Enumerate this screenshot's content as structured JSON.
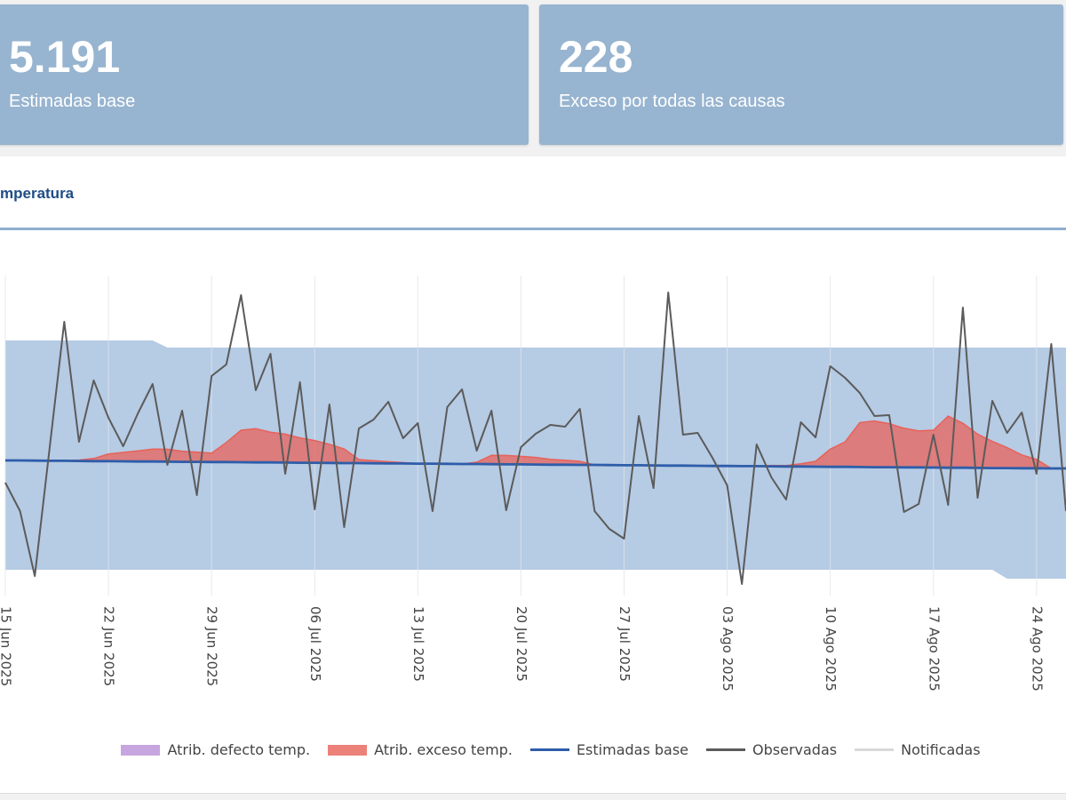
{
  "cards": [
    {
      "value": "5.191",
      "label": "Estimadas base"
    },
    {
      "value": "228",
      "label": "Exceso por todas las causas"
    }
  ],
  "panel": {
    "title": "mperatura"
  },
  "chart_data": {
    "type": "line",
    "x": [
      "2025-06-15",
      "2025-06-16",
      "2025-06-17",
      "2025-06-18",
      "2025-06-19",
      "2025-06-20",
      "2025-06-21",
      "2025-06-22",
      "2025-06-23",
      "2025-06-24",
      "2025-06-25",
      "2025-06-26",
      "2025-06-27",
      "2025-06-28",
      "2025-06-29",
      "2025-06-30",
      "2025-07-01",
      "2025-07-02",
      "2025-07-03",
      "2025-07-04",
      "2025-07-05",
      "2025-07-06",
      "2025-07-07",
      "2025-07-08",
      "2025-07-09",
      "2025-07-10",
      "2025-07-11",
      "2025-07-12",
      "2025-07-13",
      "2025-07-14",
      "2025-07-15",
      "2025-07-16",
      "2025-07-17",
      "2025-07-18",
      "2025-07-19",
      "2025-07-20",
      "2025-07-21",
      "2025-07-22",
      "2025-07-23",
      "2025-07-24",
      "2025-07-25",
      "2025-07-26",
      "2025-07-27",
      "2025-07-28",
      "2025-07-29",
      "2025-07-30",
      "2025-07-31",
      "2025-08-01",
      "2025-08-02",
      "2025-08-03",
      "2025-08-04",
      "2025-08-05",
      "2025-08-06",
      "2025-08-07",
      "2025-08-08",
      "2025-08-09",
      "2025-08-10",
      "2025-08-11",
      "2025-08-12",
      "2025-08-13",
      "2025-08-14",
      "2025-08-15",
      "2025-08-16",
      "2025-08-17",
      "2025-08-18",
      "2025-08-19",
      "2025-08-20",
      "2025-08-21",
      "2025-08-22",
      "2025-08-23",
      "2025-08-24",
      "2025-08-25",
      "2025-08-26"
    ],
    "xlim": [
      "2025-06-15",
      "2025-08-26"
    ],
    "xticks": [
      {
        "value": "2025-06-15",
        "label": "15 Jun 2025"
      },
      {
        "value": "2025-06-22",
        "label": "22 Jun 2025"
      },
      {
        "value": "2025-06-29",
        "label": "29 Jun 2025"
      },
      {
        "value": "2025-07-06",
        "label": "06 Jul 2025"
      },
      {
        "value": "2025-07-13",
        "label": "13 Jul 2025"
      },
      {
        "value": "2025-07-20",
        "label": "20 Jul 2025"
      },
      {
        "value": "2025-07-27",
        "label": "27 Jul 2025"
      },
      {
        "value": "2025-08-03",
        "label": "03 Ago 2025"
      },
      {
        "value": "2025-08-10",
        "label": "10 Ago 2025"
      },
      {
        "value": "2025-08-17",
        "label": "17 Ago 2025"
      },
      {
        "value": "2025-08-24",
        "label": "24 Ago 2025"
      }
    ],
    "ylim": [
      0,
      180
    ],
    "grid": true,
    "legend": "bottom",
    "interval": {
      "color": "#b6cbe4",
      "upper": [
        143.5,
        143.5,
        143.5,
        143.5,
        143.5,
        143.5,
        143.5,
        143.5,
        143.5,
        143.5,
        143.5,
        139.5,
        139.5,
        139.5,
        139.5,
        139.5,
        139.5,
        139.5,
        139.5,
        139.5,
        139.5,
        139.5,
        139.5,
        139.5,
        139.5,
        139.5,
        139.5,
        139.5,
        139.5,
        139.5,
        139.5,
        139.5,
        139.5,
        139.5,
        139.5,
        139.5,
        139.5,
        139.5,
        139.5,
        139.5,
        139.5,
        139.5,
        139.5,
        139.5,
        139.5,
        139.5,
        139.5,
        139.5,
        139.5,
        139.5,
        139.5,
        139.5,
        139.5,
        139.5,
        139.5,
        139.5,
        139.5,
        139.5,
        139.5,
        139.5,
        139.5,
        139.5,
        139.5,
        139.5,
        139.5,
        139.5,
        139.5,
        139.5,
        139.5,
        139.5,
        139.5,
        139.5,
        139.5
      ],
      "lower": [
        14.5,
        14.5,
        14.5,
        14.5,
        14.5,
        14.5,
        14.5,
        14.5,
        14.5,
        14.5,
        14.5,
        14.5,
        14.5,
        14.5,
        14.5,
        14.5,
        14.5,
        14.5,
        14.5,
        14.5,
        14.5,
        14.5,
        14.5,
        14.5,
        14.5,
        14.5,
        14.5,
        14.5,
        14.5,
        14.5,
        14.5,
        14.5,
        14.5,
        14.5,
        14.5,
        14.5,
        14.5,
        14.5,
        14.5,
        14.5,
        14.5,
        14.5,
        14.5,
        14.5,
        14.5,
        14.5,
        14.5,
        14.5,
        14.5,
        14.5,
        14.5,
        14.5,
        14.5,
        14.5,
        14.5,
        14.5,
        14.5,
        14.5,
        14.5,
        14.5,
        14.5,
        14.5,
        14.5,
        14.5,
        14.5,
        14.5,
        14.5,
        14.5,
        9.5,
        9.5,
        9.5,
        9.5,
        9.5
      ]
    },
    "series": [
      {
        "name": "Atrib. defecto temp.",
        "color": "#b98fd9",
        "kind": "area"
      },
      {
        "name": "Atrib. exceso temp.",
        "color": "#e8625a",
        "kind": "area",
        "stack_on": 2,
        "values": [
          0,
          0,
          0,
          0,
          0,
          0.5,
          1.5,
          4,
          5,
          6,
          7,
          7,
          6,
          5.5,
          5,
          11,
          18,
          19,
          17,
          16,
          14,
          12.5,
          10.5,
          8,
          2,
          1.5,
          1,
          0.5,
          0,
          0,
          0,
          0,
          1,
          5,
          5,
          4.5,
          4,
          3,
          2.5,
          2,
          0,
          0,
          0,
          0,
          0,
          0,
          0,
          0,
          0,
          0,
          0,
          0,
          0.5,
          0.5,
          1.5,
          3,
          10,
          14,
          25,
          26,
          24.5,
          22,
          20.5,
          21,
          29,
          25,
          19,
          15,
          11.5,
          7.5,
          5,
          0,
          0
        ]
      },
      {
        "name": "Estimadas base",
        "color": "#2e5daa",
        "kind": "line",
        "values": [
          76,
          76,
          75.9,
          75.8,
          75.8,
          75.7,
          75.6,
          75.6,
          75.5,
          75.4,
          75.4,
          75.3,
          75.2,
          75.2,
          75.1,
          75.1,
          75,
          74.9,
          74.9,
          74.8,
          74.7,
          74.7,
          74.6,
          74.5,
          74.5,
          74.4,
          74.3,
          74.3,
          74.2,
          74.2,
          74.1,
          74,
          74,
          73.9,
          73.8,
          73.8,
          73.7,
          73.6,
          73.6,
          73.5,
          73.5,
          73.4,
          73.3,
          73.3,
          73.2,
          73.1,
          73.1,
          73,
          72.9,
          72.9,
          72.8,
          72.8,
          72.7,
          72.6,
          72.6,
          72.5,
          72.4,
          72.4,
          72.3,
          72.2,
          72.2,
          72.1,
          72.1,
          72,
          71.9,
          71.9,
          71.8,
          71.7,
          71.7,
          71.6,
          71.6,
          71.5,
          71.5
        ]
      },
      {
        "name": "Observadas",
        "color": "#5b5b5b",
        "kind": "line",
        "values": [
          63.5,
          47.5,
          11,
          82.5,
          154,
          86.5,
          121,
          100,
          84,
          102.5,
          119,
          73.5,
          104,
          56.5,
          123.5,
          130,
          169,
          115.5,
          136,
          68.5,
          120,
          48.5,
          107.5,
          38.5,
          94,
          99,
          109,
          88.5,
          97,
          47.5,
          106,
          116,
          81.5,
          104,
          48,
          83.5,
          91,
          96,
          95,
          105,
          47.5,
          37.5,
          32,
          101,
          60.5,
          170.5,
          90.5,
          91.5,
          77.5,
          62,
          6.5,
          85,
          66.5,
          54,
          97.5,
          89,
          129,
          122.5,
          114,
          101,
          101.5,
          47,
          51.5,
          90.5,
          51,
          162,
          55,
          109.5,
          91.5,
          103,
          68.5,
          141.5,
          47.5
        ]
      },
      {
        "name": "Notificadas",
        "color": "#d9d9d9",
        "kind": "line"
      }
    ]
  }
}
